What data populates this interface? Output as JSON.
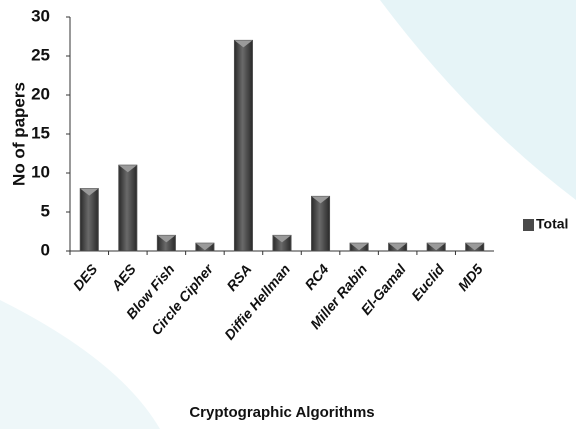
{
  "chart_data": {
    "type": "bar",
    "x_label": "Cryptographic Algorithms",
    "y_label": "No of papers",
    "categories": [
      "DES",
      "AES",
      "Blow Fish",
      "Circle Cipher",
      "RSA",
      "Diffie Hellman",
      "RC4",
      "Miller Rabin",
      "El-Gamal",
      "Euclid",
      "MD5"
    ],
    "series": [
      {
        "name": "Total",
        "color": "#4a4a4a",
        "values": [
          8,
          11,
          2,
          1,
          27,
          2,
          7,
          1,
          1,
          1,
          1
        ]
      }
    ],
    "ylim": [
      0,
      30
    ],
    "yticks": [
      0,
      5,
      10,
      15,
      20,
      25,
      30
    ],
    "legend": "right",
    "grid": false
  }
}
